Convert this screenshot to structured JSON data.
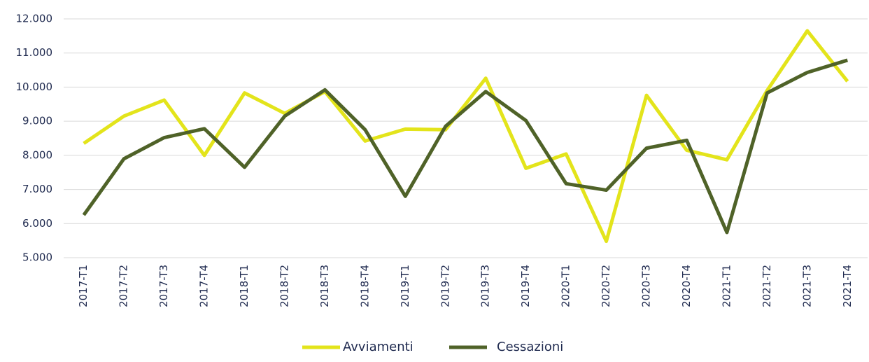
{
  "chart_data": {
    "type": "line",
    "categories": [
      "2017-T1",
      "2017-T2",
      "2017-T3",
      "2017-T4",
      "2018-T1",
      "2018-T2",
      "2018-T3",
      "2018-T4",
      "2019-T1",
      "2019-T2",
      "2019-T3",
      "2019-T4",
      "2020-T1",
      "2020-T2",
      "2020-T3",
      "2020-T4",
      "2021-T1",
      "2021-T2",
      "2021-T3",
      "2021-T4"
    ],
    "series": [
      {
        "name": "Avviamenti",
        "color": "#e3e41b",
        "values": [
          8350,
          9150,
          9620,
          8000,
          9830,
          9230,
          9870,
          8420,
          8770,
          8750,
          10260,
          7620,
          8040,
          5480,
          9760,
          8150,
          7870,
          9900,
          11650,
          10170
        ]
      },
      {
        "name": "Cessazioni",
        "color": "#4f6228",
        "values": [
          6250,
          7900,
          8520,
          8780,
          7650,
          9150,
          9920,
          8750,
          6800,
          8850,
          9870,
          9020,
          7170,
          6980,
          8210,
          8440,
          5740,
          9830,
          10430,
          10790
        ]
      }
    ],
    "ylim": [
      5000,
      12000
    ],
    "yticks": [
      {
        "value": 5000,
        "label": "5.000"
      },
      {
        "value": 6000,
        "label": "6.000"
      },
      {
        "value": 7000,
        "label": "7.000"
      },
      {
        "value": 8000,
        "label": "8.000"
      },
      {
        "value": 9000,
        "label": "9.000"
      },
      {
        "value": 10000,
        "label": "10.000"
      },
      {
        "value": 11000,
        "label": "11.000"
      },
      {
        "value": 12000,
        "label": "12.000"
      }
    ],
    "grid": true,
    "legend": "bottom"
  }
}
